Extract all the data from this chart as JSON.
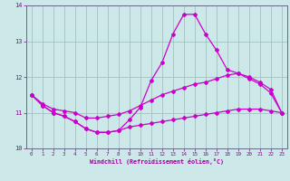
{
  "x": [
    0,
    1,
    2,
    3,
    4,
    5,
    6,
    7,
    8,
    9,
    10,
    11,
    12,
    13,
    14,
    15,
    16,
    17,
    18,
    19,
    20,
    21,
    22,
    23
  ],
  "y_main": [
    11.5,
    11.2,
    11.0,
    10.9,
    10.75,
    10.55,
    10.45,
    10.45,
    10.5,
    10.8,
    11.15,
    11.9,
    12.4,
    13.2,
    13.75,
    13.75,
    13.2,
    12.75,
    12.2,
    12.1,
    11.95,
    11.8,
    11.55,
    11.0
  ],
  "y_upper": [
    11.5,
    11.25,
    11.1,
    11.05,
    11.0,
    10.85,
    10.85,
    10.9,
    10.95,
    11.05,
    11.2,
    11.35,
    11.5,
    11.6,
    11.7,
    11.8,
    11.85,
    11.95,
    12.05,
    12.1,
    12.0,
    11.85,
    11.65,
    11.0
  ],
  "y_lower": [
    11.5,
    11.2,
    11.0,
    10.9,
    10.75,
    10.55,
    10.45,
    10.45,
    10.5,
    10.6,
    10.65,
    10.7,
    10.75,
    10.8,
    10.85,
    10.9,
    10.95,
    11.0,
    11.05,
    11.1,
    11.1,
    11.1,
    11.05,
    11.0
  ],
  "ylim": [
    10.0,
    14.0
  ],
  "xlim_min": -0.5,
  "xlim_max": 23.5,
  "yticks": [
    10,
    11,
    12,
    13,
    14
  ],
  "xticks": [
    0,
    1,
    2,
    3,
    4,
    5,
    6,
    7,
    8,
    9,
    10,
    11,
    12,
    13,
    14,
    15,
    16,
    17,
    18,
    19,
    20,
    21,
    22,
    23
  ],
  "xlabel": "Windchill (Refroidissement éolien,°C)",
  "bg_color": "#cce8e8",
  "line_color": "#cc00cc",
  "grid_color": "#99bbbb",
  "tick_color": "#990099",
  "spine_color": "#666688"
}
